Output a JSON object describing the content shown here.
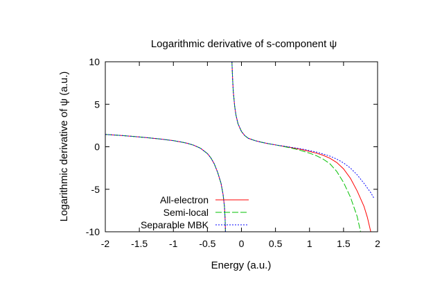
{
  "chart_data": {
    "type": "line",
    "title": "Logarithmic derivative of s-component ψ",
    "xlabel": "Energy (a.u.)",
    "ylabel": "Logarithmic derivative of ψ (a.u.)",
    "xlim": [
      -2,
      2
    ],
    "ylim": [
      -10,
      10
    ],
    "xticks": [
      -2,
      -1.5,
      -1,
      -0.5,
      0,
      0.5,
      1,
      1.5,
      2
    ],
    "xtick_labels": [
      "-2",
      "-1.5",
      "-1",
      "-0.5",
      "0",
      "0.5",
      "1",
      "1.5",
      "2"
    ],
    "yticks": [
      -10,
      -5,
      0,
      5,
      10
    ],
    "ytick_labels": [
      "-10",
      "-5",
      "0",
      "5",
      "10"
    ],
    "grid": false,
    "legend_position": "bottom-left",
    "series": [
      {
        "name": "All-electron",
        "color": "#ff0000",
        "dash": "solid",
        "segments": [
          [
            [
              -2.0,
              1.45
            ],
            [
              -1.8,
              1.35
            ],
            [
              -1.6,
              1.22
            ],
            [
              -1.4,
              1.08
            ],
            [
              -1.2,
              0.92
            ],
            [
              -1.0,
              0.72
            ],
            [
              -0.9,
              0.58
            ],
            [
              -0.8,
              0.42
            ],
            [
              -0.7,
              0.18
            ],
            [
              -0.6,
              -0.18
            ],
            [
              -0.5,
              -0.8
            ],
            [
              -0.45,
              -1.3
            ],
            [
              -0.4,
              -2.0
            ],
            [
              -0.35,
              -3.0
            ],
            [
              -0.3,
              -4.3
            ],
            [
              -0.27,
              -5.6
            ],
            [
              -0.25,
              -7.0
            ],
            [
              -0.24,
              -8.5
            ],
            [
              -0.235,
              -10.0
            ]
          ],
          [
            [
              -0.14,
              10.0
            ],
            [
              -0.13,
              8.0
            ],
            [
              -0.12,
              6.5
            ],
            [
              -0.1,
              4.8
            ],
            [
              -0.08,
              3.7
            ],
            [
              -0.05,
              2.7
            ],
            [
              0.0,
              1.8
            ],
            [
              0.05,
              1.3
            ],
            [
              0.1,
              1.0
            ],
            [
              0.2,
              0.72
            ],
            [
              0.3,
              0.52
            ],
            [
              0.4,
              0.36
            ],
            [
              0.5,
              0.22
            ],
            [
              0.6,
              0.08
            ],
            [
              0.7,
              -0.05
            ],
            [
              0.8,
              -0.2
            ],
            [
              0.9,
              -0.35
            ],
            [
              1.0,
              -0.55
            ],
            [
              1.1,
              -0.75
            ],
            [
              1.2,
              -1.0
            ],
            [
              1.3,
              -1.35
            ],
            [
              1.4,
              -1.85
            ],
            [
              1.5,
              -2.6
            ],
            [
              1.6,
              -3.7
            ],
            [
              1.7,
              -5.2
            ],
            [
              1.8,
              -7.0
            ],
            [
              1.85,
              -8.3
            ],
            [
              1.9,
              -10.0
            ]
          ]
        ]
      },
      {
        "name": "Semi-local",
        "color": "#00c000",
        "dash": "long-dash",
        "segments": [
          [
            [
              -2.0,
              1.45
            ],
            [
              -1.8,
              1.35
            ],
            [
              -1.6,
              1.22
            ],
            [
              -1.4,
              1.08
            ],
            [
              -1.2,
              0.92
            ],
            [
              -1.0,
              0.72
            ],
            [
              -0.9,
              0.58
            ],
            [
              -0.8,
              0.42
            ],
            [
              -0.7,
              0.18
            ],
            [
              -0.6,
              -0.18
            ],
            [
              -0.5,
              -0.8
            ],
            [
              -0.45,
              -1.3
            ],
            [
              -0.4,
              -2.0
            ],
            [
              -0.35,
              -3.0
            ],
            [
              -0.3,
              -4.3
            ],
            [
              -0.27,
              -5.6
            ],
            [
              -0.25,
              -7.0
            ],
            [
              -0.24,
              -8.5
            ],
            [
              -0.235,
              -10.0
            ]
          ],
          [
            [
              -0.14,
              10.0
            ],
            [
              -0.13,
              8.0
            ],
            [
              -0.12,
              6.5
            ],
            [
              -0.1,
              4.8
            ],
            [
              -0.08,
              3.7
            ],
            [
              -0.05,
              2.7
            ],
            [
              0.0,
              1.8
            ],
            [
              0.05,
              1.3
            ],
            [
              0.1,
              1.0
            ],
            [
              0.2,
              0.72
            ],
            [
              0.3,
              0.52
            ],
            [
              0.4,
              0.36
            ],
            [
              0.5,
              0.22
            ],
            [
              0.6,
              0.06
            ],
            [
              0.7,
              -0.1
            ],
            [
              0.8,
              -0.28
            ],
            [
              0.9,
              -0.5
            ],
            [
              1.0,
              -0.75
            ],
            [
              1.1,
              -1.05
            ],
            [
              1.2,
              -1.45
            ],
            [
              1.3,
              -2.0
            ],
            [
              1.4,
              -2.9
            ],
            [
              1.5,
              -4.2
            ],
            [
              1.6,
              -5.9
            ],
            [
              1.7,
              -8.2
            ],
            [
              1.75,
              -10.0
            ]
          ]
        ]
      },
      {
        "name": "Separable MBK",
        "color": "#0000ff",
        "dash": "dotted",
        "segments": [
          [
            [
              -2.0,
              1.45
            ],
            [
              -1.8,
              1.35
            ],
            [
              -1.6,
              1.22
            ],
            [
              -1.4,
              1.08
            ],
            [
              -1.2,
              0.92
            ],
            [
              -1.0,
              0.72
            ],
            [
              -0.9,
              0.58
            ],
            [
              -0.8,
              0.42
            ],
            [
              -0.7,
              0.18
            ],
            [
              -0.6,
              -0.18
            ],
            [
              -0.5,
              -0.8
            ],
            [
              -0.45,
              -1.3
            ],
            [
              -0.4,
              -2.0
            ],
            [
              -0.35,
              -3.0
            ],
            [
              -0.3,
              -4.3
            ],
            [
              -0.27,
              -5.6
            ],
            [
              -0.25,
              -7.0
            ],
            [
              -0.24,
              -8.5
            ],
            [
              -0.235,
              -10.0
            ]
          ],
          [
            [
              -0.14,
              10.0
            ],
            [
              -0.13,
              8.0
            ],
            [
              -0.12,
              6.5
            ],
            [
              -0.1,
              4.8
            ],
            [
              -0.08,
              3.7
            ],
            [
              -0.05,
              2.7
            ],
            [
              0.0,
              1.8
            ],
            [
              0.05,
              1.3
            ],
            [
              0.1,
              1.0
            ],
            [
              0.2,
              0.72
            ],
            [
              0.3,
              0.52
            ],
            [
              0.4,
              0.36
            ],
            [
              0.5,
              0.22
            ],
            [
              0.6,
              0.1
            ],
            [
              0.7,
              -0.02
            ],
            [
              0.8,
              -0.15
            ],
            [
              0.9,
              -0.28
            ],
            [
              1.0,
              -0.45
            ],
            [
              1.1,
              -0.62
            ],
            [
              1.2,
              -0.85
            ],
            [
              1.3,
              -1.1
            ],
            [
              1.4,
              -1.45
            ],
            [
              1.5,
              -1.9
            ],
            [
              1.6,
              -2.5
            ],
            [
              1.7,
              -3.3
            ],
            [
              1.8,
              -4.3
            ],
            [
              1.9,
              -5.4
            ],
            [
              1.95,
              -6.1
            ]
          ]
        ]
      }
    ]
  }
}
